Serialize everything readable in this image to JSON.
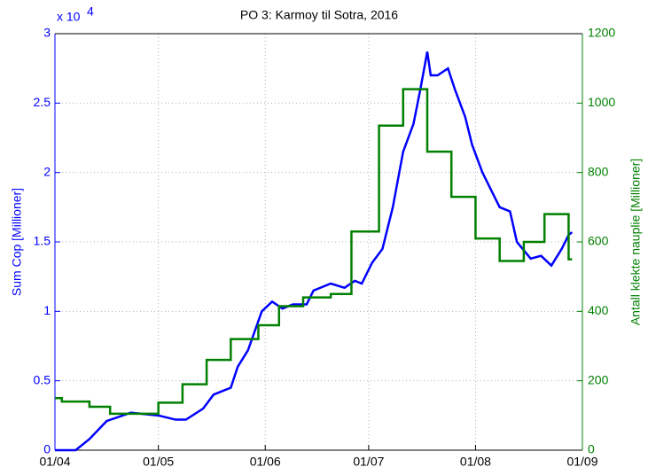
{
  "chart_data": {
    "type": "line",
    "title": "PO 3: Karmoy til Sotra, 2016",
    "y_label": "Sum Cop [Millioner]",
    "y2_label": "Antall klekte nauplie [Millioner]",
    "y_multiplier": {
      "base": "x 10",
      "exponent": "4"
    },
    "xlim": [
      0,
      153
    ],
    "xticks": [
      {
        "value": 0,
        "label": "01/04"
      },
      {
        "value": 30,
        "label": "01/05"
      },
      {
        "value": 61,
        "label": "01/06"
      },
      {
        "value": 91,
        "label": "01/07"
      },
      {
        "value": 122,
        "label": "01/08"
      },
      {
        "value": 153,
        "label": "01/09"
      }
    ],
    "ylim": [
      0,
      3
    ],
    "yticks": [
      0,
      0.5,
      1,
      1.5,
      2,
      2.5,
      3
    ],
    "y2lim": [
      0,
      1200
    ],
    "y2ticks": [
      0,
      200,
      400,
      600,
      800,
      1000,
      1200
    ],
    "grid": true,
    "series": [
      {
        "name": "Sum Cop",
        "color": "#0000ff",
        "axis": "y",
        "x": [
          0,
          6,
          10,
          15,
          22,
          30,
          35,
          38,
          43,
          46,
          51,
          53,
          56,
          60,
          63,
          66,
          69,
          73,
          75,
          80,
          84,
          87,
          89,
          92,
          95,
          98,
          101,
          104,
          106,
          108,
          109,
          111,
          114,
          116,
          119,
          121,
          124,
          127,
          129,
          132,
          134,
          138,
          141,
          144,
          147,
          149,
          150
        ],
        "values": [
          0,
          0,
          0.08,
          0.21,
          0.27,
          0.25,
          0.22,
          0.22,
          0.3,
          0.4,
          0.45,
          0.6,
          0.72,
          1.0,
          1.07,
          1.02,
          1.05,
          1.05,
          1.15,
          1.2,
          1.17,
          1.22,
          1.2,
          1.35,
          1.45,
          1.75,
          2.15,
          2.35,
          2.6,
          2.87,
          2.7,
          2.7,
          2.75,
          2.6,
          2.4,
          2.2,
          2.0,
          1.85,
          1.75,
          1.72,
          1.5,
          1.38,
          1.4,
          1.33,
          1.45,
          1.55,
          1.57
        ]
      },
      {
        "name": "Antall klekte nauplie",
        "color": "#008000",
        "axis": "y2",
        "drawstyle": "steps-post",
        "x": [
          0,
          2,
          10,
          16,
          30,
          37,
          44,
          51,
          59,
          65,
          72,
          80,
          86,
          94,
          101,
          108,
          115,
          122,
          129,
          136,
          142,
          149,
          150
        ],
        "values": [
          150,
          140,
          125,
          105,
          137,
          190,
          260,
          320,
          360,
          415,
          440,
          450,
          630,
          935,
          1040,
          860,
          730,
          610,
          545,
          600,
          680,
          550,
          550
        ]
      }
    ]
  }
}
